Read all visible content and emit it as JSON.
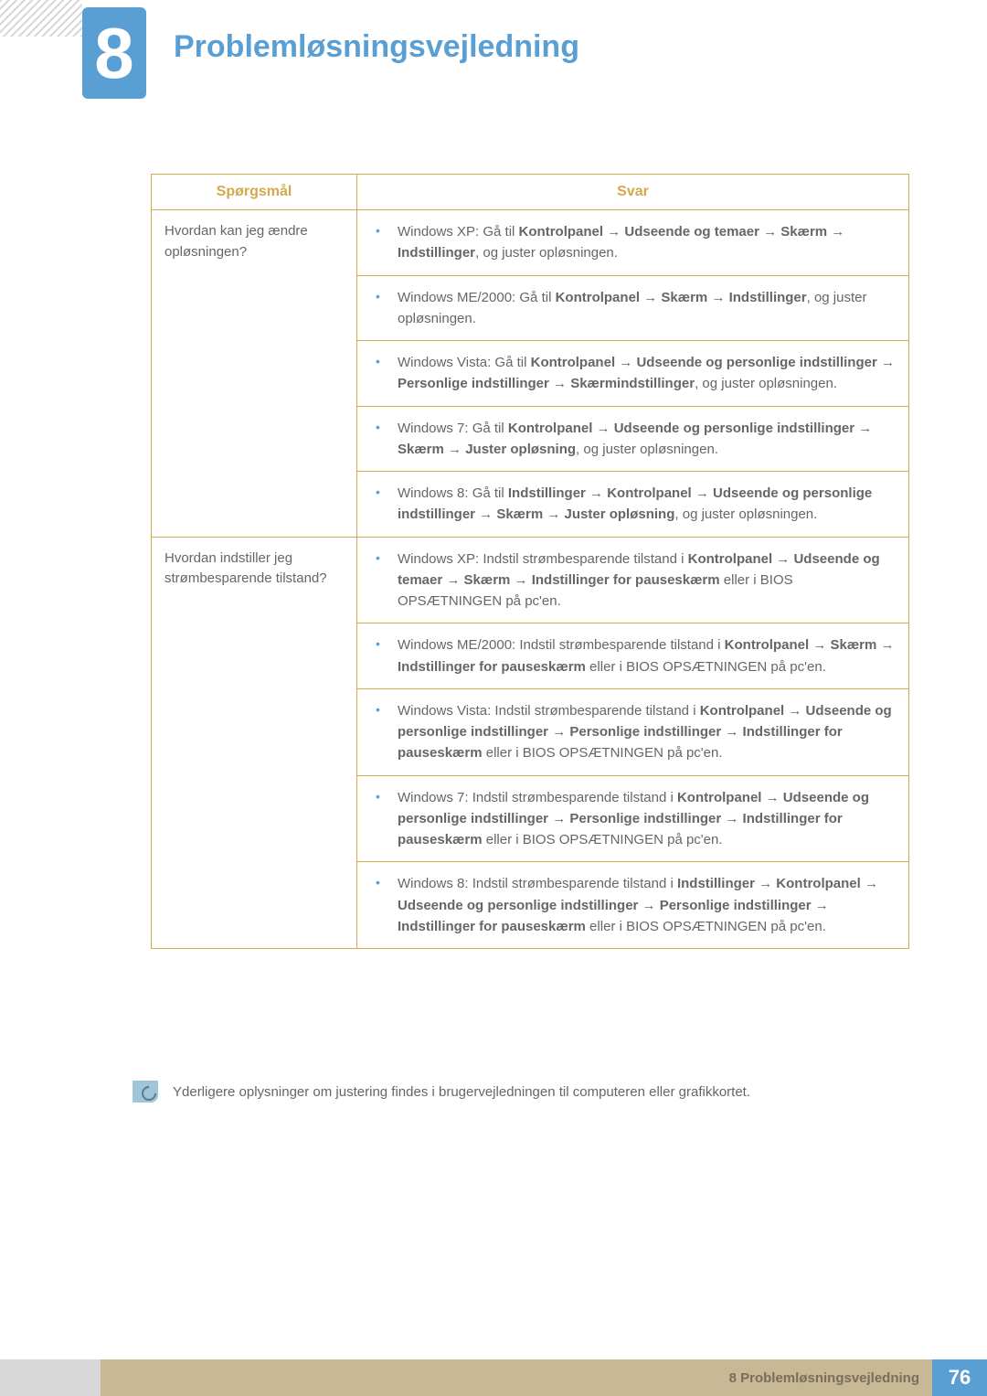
{
  "chapter": {
    "number": "8",
    "title": "Problemløsningsvejledning"
  },
  "table": {
    "headers": {
      "q": "Spørgsmål",
      "a": "Svar"
    },
    "rows": [
      {
        "q": "Hvordan kan jeg ændre opløsningen?",
        "a": [
          {
            "html": "Windows XP: Gå til <span class=b>Kontrolpanel → Udseende og temaer → Skærm → Indstillinger</span>, og juster opløsningen."
          },
          {
            "html": "Windows ME/2000: Gå til <span class=b>Kontrolpanel → Skærm → Indstillinger</span>, og juster opløsningen."
          },
          {
            "html": "Windows Vista: Gå til <span class=b>Kontrolpanel → Udseende og personlige indstillinger → Personlige indstillinger → Skærmindstillinger</span>, og juster opløsningen."
          },
          {
            "html": "Windows 7: Gå til <span class=b>Kontrolpanel → Udseende og personlige indstillinger → Skærm → Juster opløsning</span>, og juster opløsningen."
          },
          {
            "html": "Windows 8: Gå til <span class=b>Indstillinger → Kontrolpanel → Udseende og personlige indstillinger → Skærm → Juster opløsning</span>, og juster opløsningen."
          }
        ]
      },
      {
        "q": "Hvordan indstiller jeg strømbesparende tilstand?",
        "a": [
          {
            "html": "Windows XP: Indstil strømbesparende tilstand i <span class=b>Kontrolpanel → Udseende og temaer → Skærm → Indstillinger for pauseskærm</span> eller i BIOS OPSÆTNINGEN på pc'en."
          },
          {
            "html": "Windows ME/2000: Indstil strømbesparende tilstand i <span class=b>Kontrolpanel → Skærm → Indstillinger for pauseskærm</span> eller i BIOS OPSÆTNINGEN på pc'en."
          },
          {
            "html": "Windows Vista: Indstil strømbesparende tilstand i <span class=b>Kontrolpanel → Udseende og personlige indstillinger → Personlige indstillinger → Indstillinger for pauseskærm</span> eller i BIOS OPSÆTNINGEN på pc'en."
          },
          {
            "html": "Windows 7: Indstil strømbesparende tilstand i <span class=b>Kontrolpanel → Udseende og personlige indstillinger → Personlige indstillinger → Indstillinger for pauseskærm</span> eller i BIOS OPSÆTNINGEN på pc'en."
          },
          {
            "html": "Windows 8: Indstil strømbesparende tilstand i <span class=b>Indstillinger → Kontrolpanel → Udseende og personlige indstillinger → Personlige indstillinger → Indstillinger for pauseskærm</span> eller i BIOS OPSÆTNINGEN på pc'en."
          }
        ]
      }
    ]
  },
  "note": "Yderligere oplysninger om justering findes i brugervejledningen til computeren eller grafikkortet.",
  "footer": {
    "text": "8 Problemløsningsvejledning",
    "page": "76"
  },
  "colors": {
    "accent_blue": "#5a9fd4",
    "accent_gold": "#d4a84e",
    "text_body": "#666666",
    "footer_tan": "#c9b896",
    "footer_gray": "#d8d8d8"
  }
}
